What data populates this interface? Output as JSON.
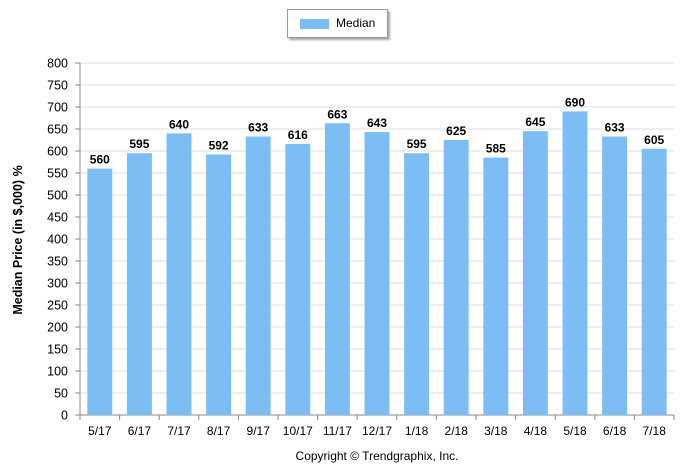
{
  "chart_data": {
    "type": "bar",
    "categories": [
      "5/17",
      "6/17",
      "7/17",
      "8/17",
      "9/17",
      "10/17",
      "11/17",
      "12/17",
      "1/18",
      "2/18",
      "3/18",
      "4/18",
      "5/18",
      "6/18",
      "7/18"
    ],
    "series": [
      {
        "name": "Median",
        "values": [
          560,
          595,
          640,
          592,
          633,
          616,
          663,
          643,
          595,
          625,
          585,
          645,
          690,
          633,
          605
        ]
      }
    ],
    "ylabel": "Median Price (in $,000) %",
    "xlabel": "",
    "ylim": [
      0,
      800
    ],
    "yticks": [
      0,
      50,
      100,
      150,
      200,
      250,
      300,
      350,
      400,
      450,
      500,
      550,
      600,
      650,
      700,
      750,
      800
    ],
    "grid": true,
    "legend": "top-center",
    "data_labels": true,
    "bar_color": "#7cbef4"
  },
  "footer": {
    "copyright": "Copyright © Trendgraphix, Inc."
  }
}
